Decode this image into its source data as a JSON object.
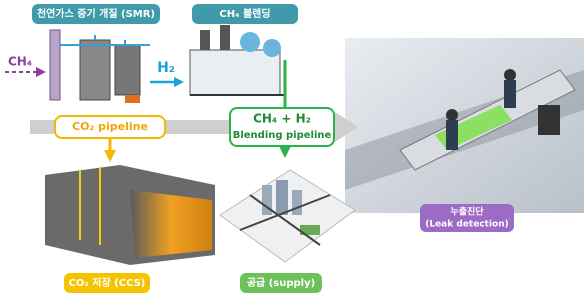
{
  "smr_label": "천연가스 증기 개질 (SMR)",
  "blending_label": "CH₄ 블렌딩",
  "ch4_input": "CH₄",
  "h2_label": "H₂",
  "co2_pipeline": "CO₂ pipeline",
  "blending_pipeline": {
    "formula": "CH₄ + H₂",
    "label": "Blending pipeline"
  },
  "leak_detection": {
    "korean": "누출진단",
    "english": "(Leak detection)"
  },
  "ccs_label": "CO₂ 저장 (CCS)",
  "supply_label": "공급 (supply)"
}
